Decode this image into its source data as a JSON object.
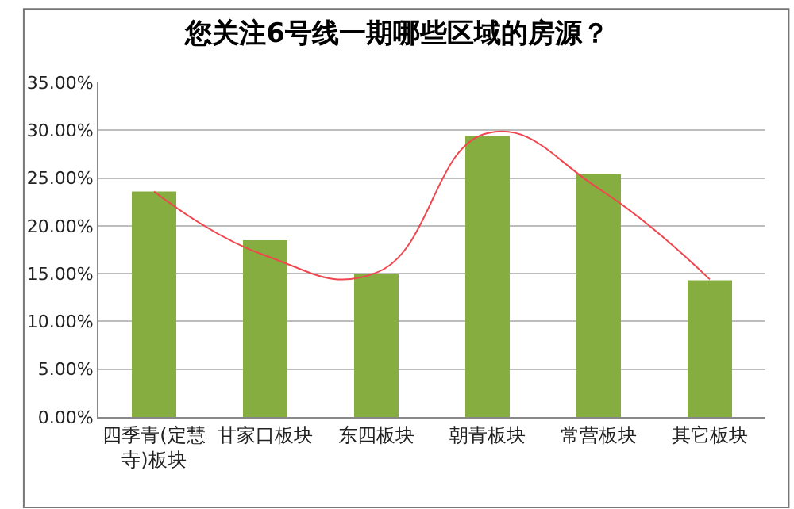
{
  "chart_data": {
    "type": "bar",
    "title": "您关注6号线一期哪些区域的房源？",
    "categories": [
      "四季青(定慧寺)板块",
      "甘家口板块",
      "东四板块",
      "朝青板块",
      "常营板块",
      "其它板块"
    ],
    "series": [
      {
        "color": "#86ad3f",
        "values": [
          23.6,
          18.5,
          15.0,
          29.4,
          25.4,
          14.3
        ]
      },
      {
        "type": "line",
        "color": "#f0474f",
        "values": [
          23.6,
          16.9,
          15.1,
          29.7,
          23.9,
          14.4
        ]
      }
    ],
    "ylim": [
      0,
      35
    ],
    "yticks": [
      {
        "value": 0,
        "label": "0.00%"
      },
      {
        "value": 5,
        "label": "5.00%"
      },
      {
        "value": 10,
        "label": "10.00%"
      },
      {
        "value": 15,
        "label": "15.00%"
      },
      {
        "value": 20,
        "label": "20.00%"
      },
      {
        "value": 25,
        "label": "25.00%"
      },
      {
        "value": 30,
        "label": "30.00%"
      },
      {
        "value": 35,
        "label": "35.00%"
      }
    ],
    "grid": "y",
    "marker": "none",
    "line_style": "solid"
  }
}
